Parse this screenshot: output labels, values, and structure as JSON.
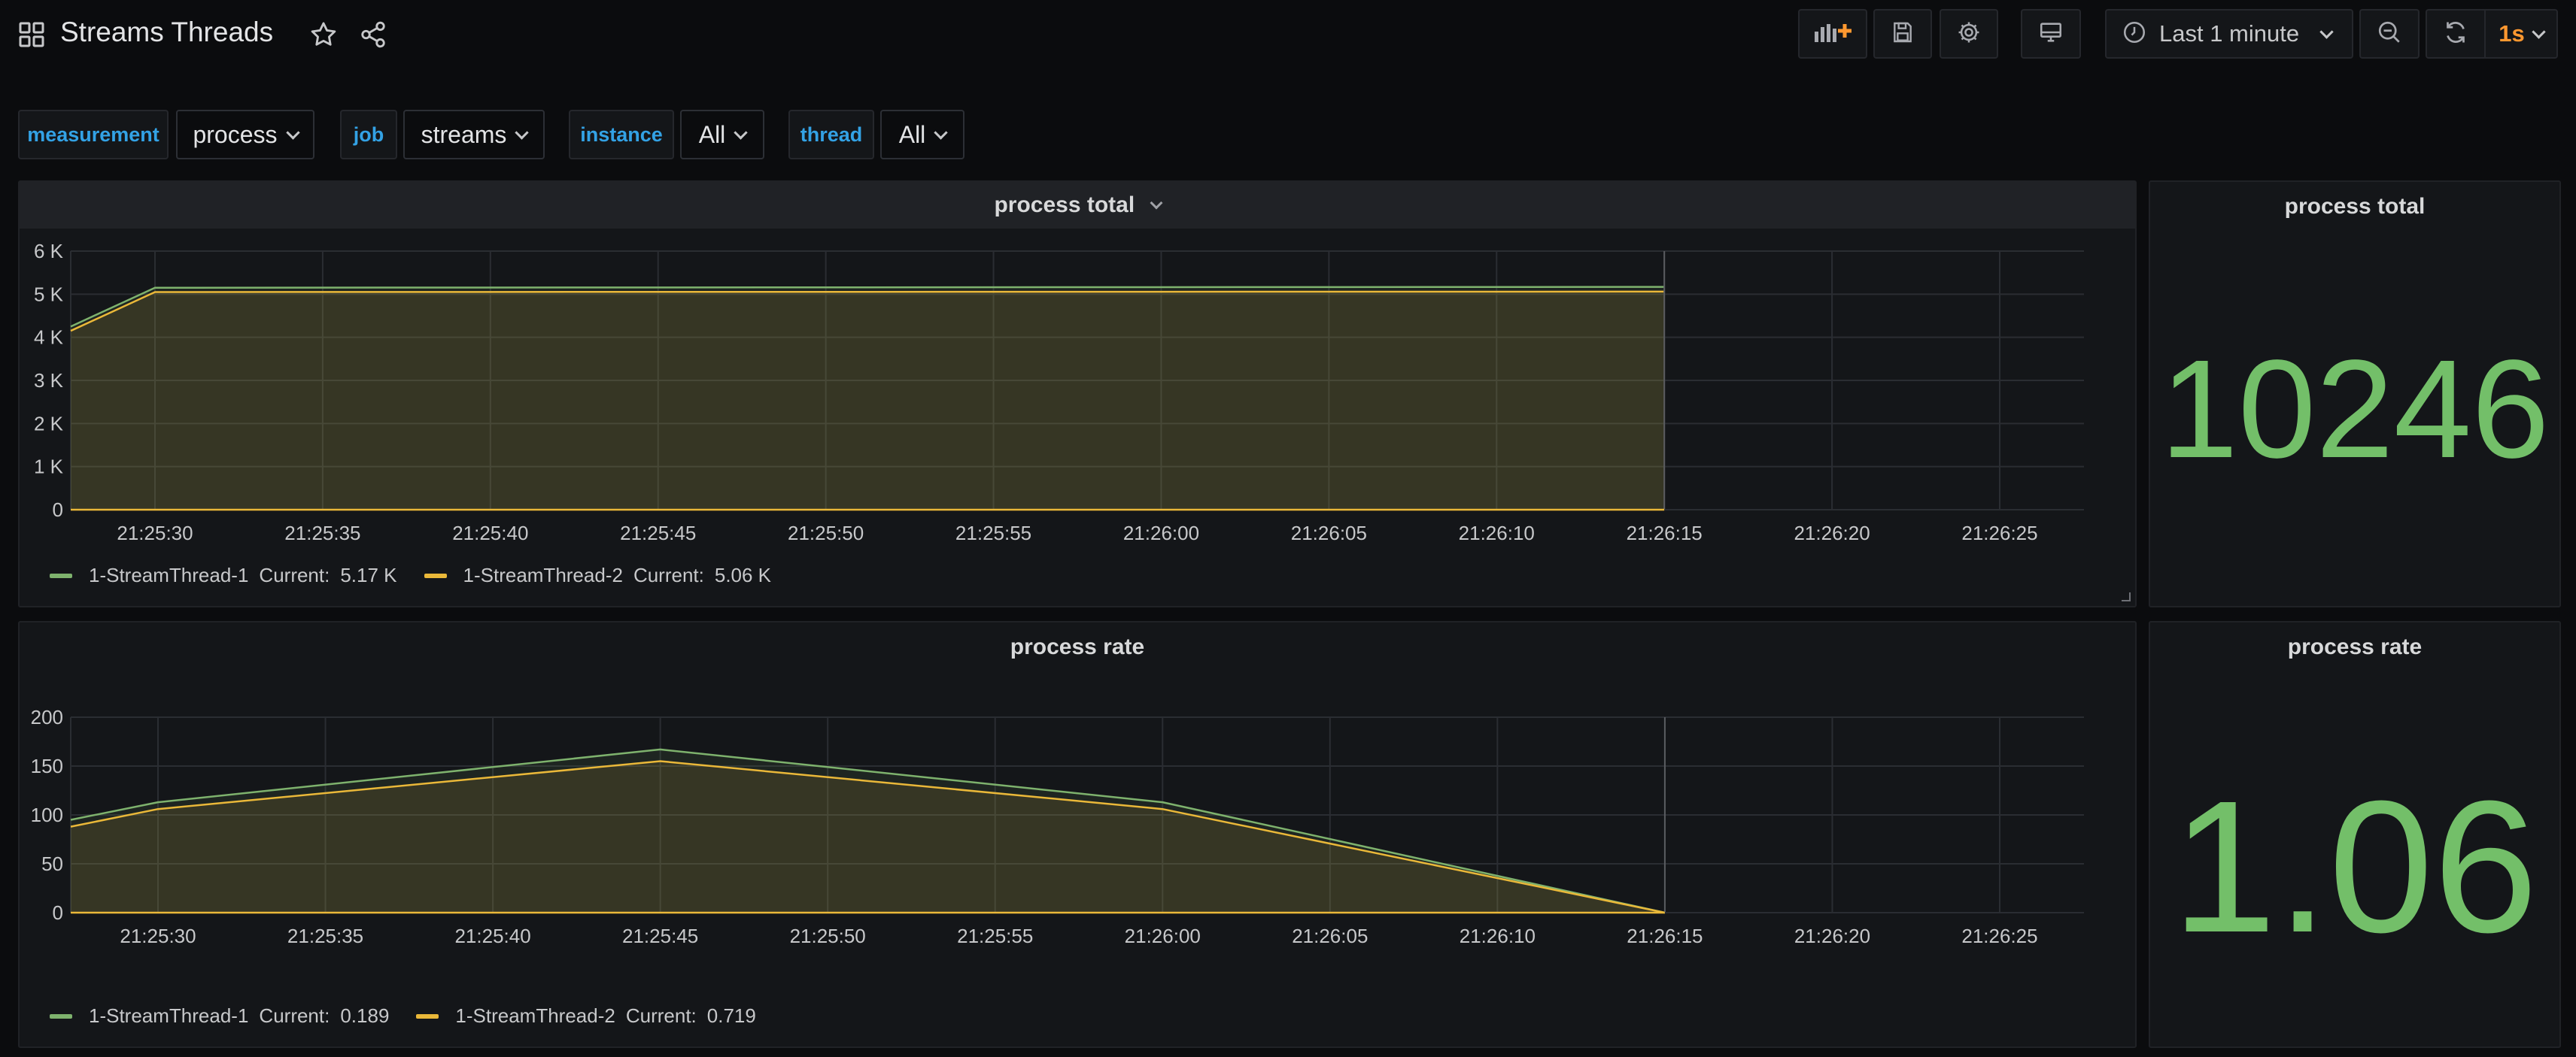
{
  "dashboard": {
    "title": "Streams Threads"
  },
  "toolbar": {
    "time_range": "Last 1 minute",
    "refresh_interval": "1s",
    "accent": "#ff9830"
  },
  "variables": [
    {
      "label": "measurement",
      "value": "process"
    },
    {
      "label": "job",
      "value": "streams"
    },
    {
      "label": "instance",
      "value": "All"
    },
    {
      "label": "thread",
      "value": "All"
    }
  ],
  "panels": {
    "total_graph": {
      "title": "process total",
      "legend": [
        {
          "name": "1-StreamThread-1",
          "current_label": "Current:",
          "current": "5.17 K",
          "color": "#7eb26d"
        },
        {
          "name": "1-StreamThread-2",
          "current_label": "Current:",
          "current": "5.06 K",
          "color": "#eab839"
        }
      ]
    },
    "total_stat": {
      "title": "process total",
      "value": "10246"
    },
    "rate_graph": {
      "title": "process rate",
      "legend": [
        {
          "name": "1-StreamThread-1",
          "current_label": "Current:",
          "current": "0.189",
          "color": "#7eb26d"
        },
        {
          "name": "1-StreamThread-2",
          "current_label": "Current:",
          "current": "0.719",
          "color": "#eab839"
        }
      ]
    },
    "rate_stat": {
      "title": "process rate",
      "value": "1.06"
    }
  },
  "chart_data": [
    {
      "type": "area",
      "title": "process total",
      "x": [
        "21:25:27",
        "21:25:30",
        "21:26:15"
      ],
      "x_ticks": [
        "21:25:30",
        "21:25:35",
        "21:25:40",
        "21:25:45",
        "21:25:50",
        "21:25:55",
        "21:26:00",
        "21:26:05",
        "21:26:10",
        "21:26:15",
        "21:26:20",
        "21:26:25"
      ],
      "y_ticks": [
        "0",
        "1 K",
        "2 K",
        "3 K",
        "4 K",
        "5 K",
        "6 K"
      ],
      "ylim": [
        0,
        6000
      ],
      "grid": true,
      "legend_position": "bottom-left",
      "series": [
        {
          "name": "1-StreamThread-1",
          "values": [
            4250,
            5150,
            5170
          ]
        },
        {
          "name": "1-StreamThread-2",
          "values": [
            4150,
            5050,
            5060
          ]
        }
      ]
    },
    {
      "type": "area",
      "title": "process rate",
      "x": [
        "21:25:27",
        "21:25:30",
        "21:25:45",
        "21:26:00",
        "21:26:15"
      ],
      "x_ticks": [
        "21:25:30",
        "21:25:35",
        "21:25:40",
        "21:25:45",
        "21:25:50",
        "21:25:55",
        "21:26:00",
        "21:26:05",
        "21:26:10",
        "21:26:15",
        "21:26:20",
        "21:26:25"
      ],
      "y_ticks": [
        "0",
        "50",
        "100",
        "150",
        "200"
      ],
      "ylim": [
        0,
        200
      ],
      "grid": true,
      "legend_position": "bottom-left",
      "series": [
        {
          "name": "1-StreamThread-1",
          "values": [
            95,
            113,
            167,
            113,
            0
          ]
        },
        {
          "name": "1-StreamThread-2",
          "values": [
            88,
            106,
            155,
            106,
            0
          ]
        }
      ]
    }
  ]
}
